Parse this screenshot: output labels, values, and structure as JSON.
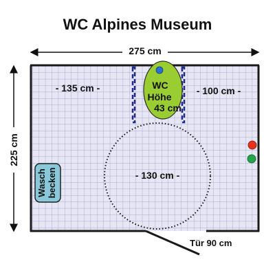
{
  "title": "WC Alpines Museum",
  "dimensions": {
    "width": "275 cm",
    "height": "225 cm",
    "left_of_wc": "- 135 cm -",
    "right_of_wc": "- 100 cm -",
    "turning_circle": "- 130 cm -",
    "door": "Tür 90 cm"
  },
  "wc": {
    "line1": "WC",
    "line2": "Höhe",
    "line3": "43 cm",
    "color": "#9acd32"
  },
  "sink": {
    "line1": "Wasch",
    "line2": "becken",
    "color": "#88c8d8"
  },
  "colors": {
    "floor": "#e6e6f4",
    "grid": "#a8a8cc",
    "wall": "#1a1a1a",
    "grab_bar": "#1f2a8c",
    "flush_button": "#2a6fd6",
    "alarm_red": "#e8301c",
    "alarm_green": "#22a64a"
  }
}
